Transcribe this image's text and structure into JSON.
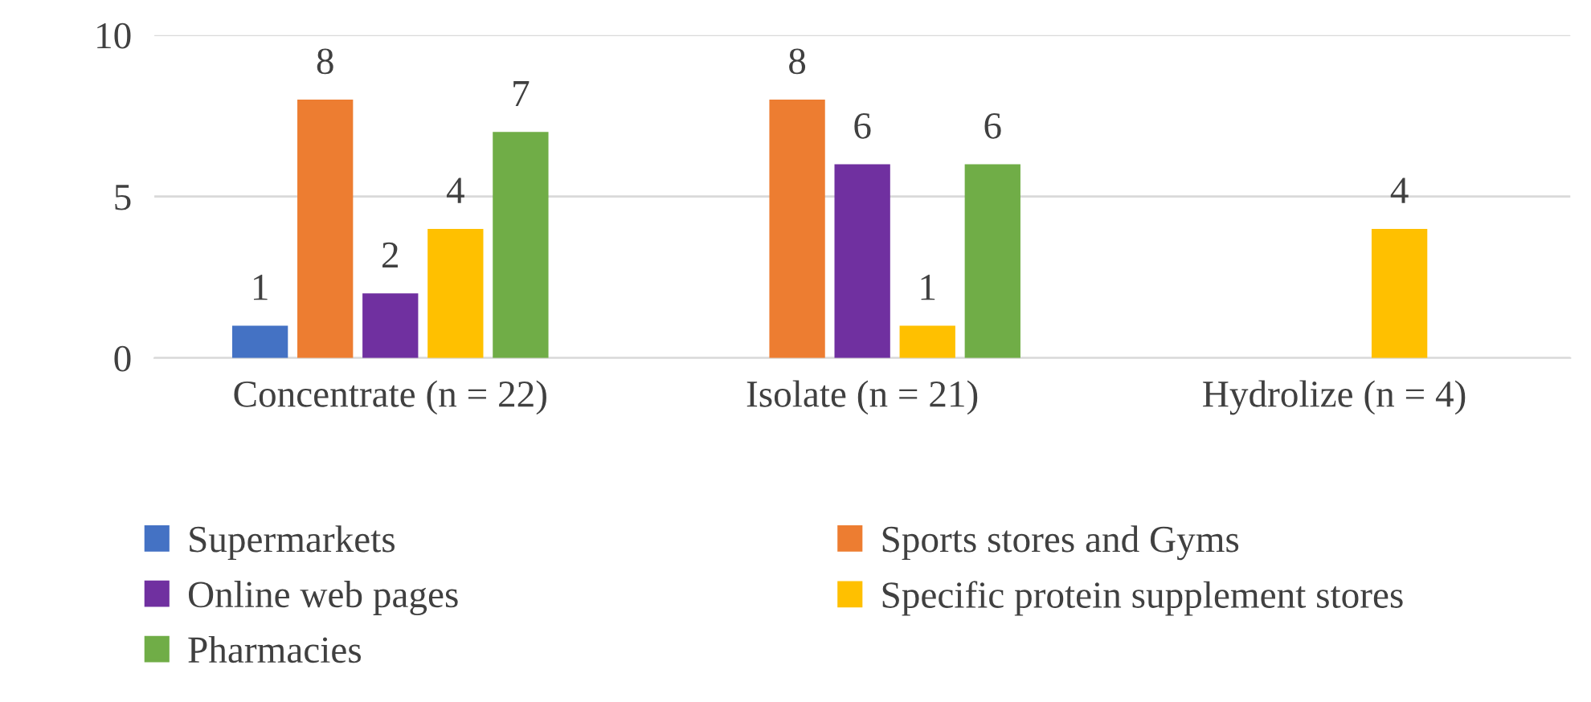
{
  "chart_data": {
    "type": "bar",
    "categories": [
      "Concentrate (n = 22)",
      "Isolate (n = 21)",
      "Hydrolize (n = 4)"
    ],
    "series": [
      {
        "name": "Supermarkets",
        "color": "#4472c4",
        "values": [
          1,
          null,
          null
        ]
      },
      {
        "name": "Sports stores and Gyms",
        "color": "#ed7d31",
        "values": [
          8,
          8,
          null
        ]
      },
      {
        "name": "Online web pages",
        "color": "#7030a0",
        "values": [
          2,
          6,
          null
        ]
      },
      {
        "name": "Specific protein supplement stores",
        "color": "#ffc000",
        "values": [
          4,
          1,
          4
        ]
      },
      {
        "name": "Pharmacies",
        "color": "#70ad47",
        "values": [
          7,
          6,
          null
        ]
      }
    ],
    "ylim": [
      0,
      10
    ],
    "yticks": [
      0,
      5,
      10
    ],
    "grid": "y",
    "legend": "bottom",
    "data_labels": true
  }
}
